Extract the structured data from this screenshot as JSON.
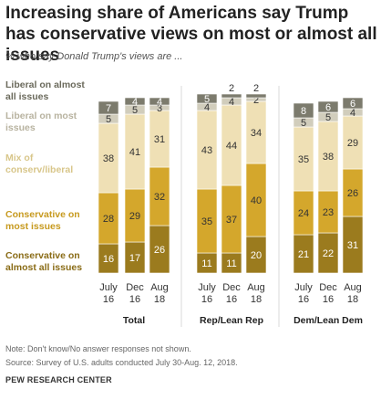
{
  "title": "Increasing share of Americans say Trump has conservative views on most or almost all issues",
  "subtitle": "% who say Donald Trump's views are ...",
  "note": "Note: Don't know/No answer responses not shown.",
  "source": "Source: Survey of U.S. adults conducted July 30-Aug. 12, 2018.",
  "organization": "PEW RESEARCH CENTER",
  "chart_data": {
    "type": "bar",
    "stacked": true,
    "legend_placement": "left",
    "categories": [
      [
        "July",
        "16"
      ],
      [
        "Dec",
        "16"
      ],
      [
        "Aug",
        "18"
      ],
      [
        "July",
        "16"
      ],
      [
        "Dec",
        "16"
      ],
      [
        "Aug",
        "18"
      ],
      [
        "July",
        "16"
      ],
      [
        "Dec",
        "16"
      ],
      [
        "Aug",
        "18"
      ]
    ],
    "groups": [
      {
        "label": "Total",
        "bars": [
          0,
          1,
          2
        ]
      },
      {
        "label": "Rep/Lean Rep",
        "bars": [
          3,
          4,
          5
        ]
      },
      {
        "label": "Dem/Lean Dem",
        "bars": [
          6,
          7,
          8
        ]
      }
    ],
    "series": [
      {
        "name": "Conservative on almost all issues",
        "color": "#9b7b1e",
        "label_color": "#ffffff",
        "values": [
          16,
          17,
          26,
          11,
          11,
          20,
          21,
          22,
          31
        ]
      },
      {
        "name": "Conservative on most issues",
        "color": "#d4a72c",
        "label_color": "#333333",
        "values": [
          28,
          29,
          32,
          35,
          37,
          40,
          24,
          23,
          26
        ]
      },
      {
        "name": "Mix of conserv/liberal",
        "color": "#efe0b5",
        "label_color": "#333333",
        "values": [
          38,
          41,
          31,
          43,
          44,
          34,
          35,
          38,
          29
        ]
      },
      {
        "name": "Liberal on most issues",
        "color": "#d1cdbc",
        "label_color": "#333333",
        "values": [
          5,
          5,
          3,
          4,
          4,
          2,
          5,
          5,
          4
        ]
      },
      {
        "name": "Liberal on almost all issues",
        "color": "#7c7b6d",
        "label_color": "#ffffff",
        "values": [
          7,
          4,
          4,
          5,
          2,
          2,
          8,
          6,
          6
        ]
      }
    ],
    "legend_labels": [
      {
        "series": 4,
        "lines": [
          "Liberal on almost",
          "all issues"
        ],
        "color": "#6b6a5c"
      },
      {
        "series": 3,
        "lines": [
          "Liberal on most",
          "issues"
        ],
        "color": "#b8b3a0"
      },
      {
        "series": 2,
        "lines": [
          "Mix of",
          "conserv/liberal"
        ],
        "color": "#d8c68a"
      },
      {
        "series": 1,
        "lines": [
          "Conservative on",
          "most issues"
        ],
        "color": "#c79a1f"
      },
      {
        "series": 0,
        "lines": [
          "Conservative on",
          "almost all issues"
        ],
        "color": "#8a6c17"
      }
    ]
  }
}
